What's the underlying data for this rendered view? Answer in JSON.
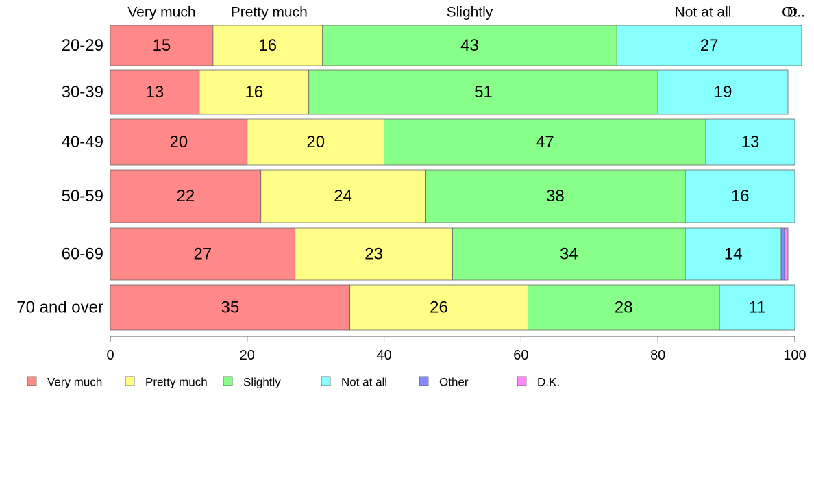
{
  "chart_data": {
    "type": "bar",
    "orientation": "horizontal",
    "stacked": true,
    "categories": [
      "20-29",
      "30-39",
      "40-49",
      "50-59",
      "60-69",
      "70 and over"
    ],
    "series": [
      {
        "name": "Very much",
        "color": "#ff8888",
        "values": [
          15,
          13,
          20,
          22,
          27,
          35
        ]
      },
      {
        "name": "Pretty much",
        "color": "#ffff88",
        "values": [
          16,
          16,
          20,
          24,
          23,
          26
        ]
      },
      {
        "name": "Slightly",
        "color": "#88ff88",
        "values": [
          43,
          51,
          47,
          38,
          34,
          28
        ]
      },
      {
        "name": "Not at all",
        "color": "#88ffff",
        "values": [
          27,
          19,
          13,
          16,
          14,
          11
        ]
      },
      {
        "name": "Other",
        "color": "#8888ff",
        "values": [
          0,
          0,
          0,
          0,
          0.5,
          0
        ]
      },
      {
        "name": "D.K.",
        "color": "#ff88ff",
        "values": [
          0,
          0,
          0,
          0,
          0.5,
          0
        ]
      }
    ],
    "value_labels": [
      [
        "15",
        "16",
        "43",
        "27",
        "",
        ""
      ],
      [
        "13",
        "16",
        "51",
        "19",
        "",
        ""
      ],
      [
        "20",
        "20",
        "47",
        "13",
        "",
        ""
      ],
      [
        "22",
        "24",
        "38",
        "16",
        "",
        ""
      ],
      [
        "27",
        "23",
        "34",
        "14",
        "",
        ""
      ],
      [
        "35",
        "26",
        "28",
        "11",
        "",
        ""
      ]
    ],
    "top_labels": [
      "Very much",
      "Pretty much",
      "Slightly",
      "Not at all",
      "Ot..",
      "D.."
    ],
    "xlim": [
      0,
      100
    ],
    "xticks": [
      0,
      20,
      40,
      60,
      80,
      100
    ],
    "xtick_labels": [
      "0",
      "20",
      "40",
      "60",
      "80",
      "100"
    ],
    "grid": false,
    "legend_position": "bottom"
  }
}
